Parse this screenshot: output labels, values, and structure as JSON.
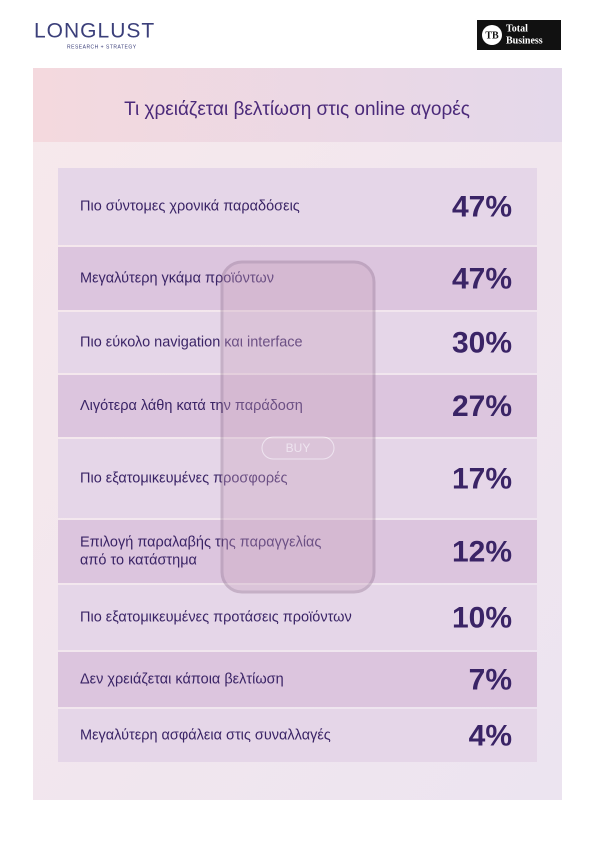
{
  "header": {
    "brand": "LONGLUST",
    "brand_tagline": "RESEARCH + STRATEGY",
    "partner_icon": "TB",
    "partner_line1": "Total",
    "partner_line2": "Business"
  },
  "title": "Τι χρειάζεται βελτίωση στις online αγορές",
  "background_button": "BUY",
  "rows": [
    {
      "label": [
        "Πιο σύντομες χρονικά παραδόσεις"
      ],
      "value": "47%"
    },
    {
      "label": [
        "Μεγαλύτερη γκάμα προϊόντων"
      ],
      "value": "47%"
    },
    {
      "label": [
        "Πιο εύκολο navigation και interface"
      ],
      "value": "30%"
    },
    {
      "label": [
        "Λιγότερα λάθη κατά την παράδοση"
      ],
      "value": "27%"
    },
    {
      "label": [
        "Πιο εξατομικευμένες προσφορές"
      ],
      "value": "17%"
    },
    {
      "label": [
        "Επιλογή παραλαβής της παραγγελίας",
        "από το κατάστημα"
      ],
      "value": "12%"
    },
    {
      "label": [
        "Πιο εξατομικευμένες προτάσεις προϊόντων"
      ],
      "value": "10%"
    },
    {
      "label": [
        "Δεν χρειάζεται κάποια βελτίωση"
      ],
      "value": "7%"
    },
    {
      "label": [
        "Μεγαλύτερη ασφάλεια στις συναλλαγές"
      ],
      "value": "4%"
    }
  ]
}
